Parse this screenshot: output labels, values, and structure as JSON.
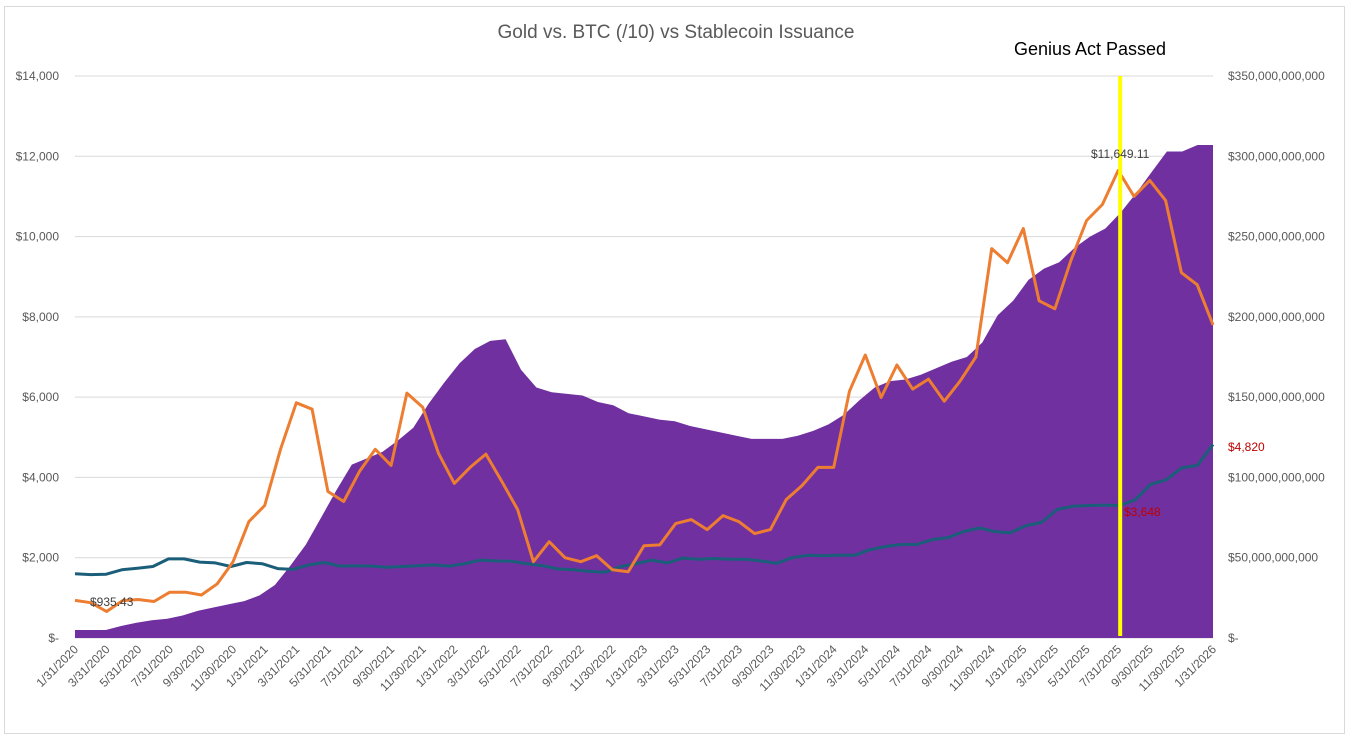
{
  "chart_data": {
    "type": "line",
    "title": "Gold vs. BTC (/10) vs Stablecoin Issuance",
    "xlabel": "",
    "ylabel": "",
    "y_left_ticks": [
      "$-",
      "$2,000",
      "$4,000",
      "$6,000",
      "$8,000",
      "$10,000",
      "$12,000",
      "$14,000"
    ],
    "y_left_lim": [
      0,
      14000
    ],
    "y_right_ticks": [
      "$-",
      "$50,000,000,000",
      "$100,000,000,000",
      "$150,000,000,000",
      "$200,000,000,000",
      "$250,000,000,000",
      "$300,000,000,000",
      "$350,000,000,000"
    ],
    "y_right_lim": [
      0,
      350000000000
    ],
    "x_tick_labels": [
      "1/31/2020",
      "3/31/2020",
      "5/31/2020",
      "7/31/2020",
      "9/30/2020",
      "11/30/2020",
      "1/31/2021",
      "3/31/2021",
      "5/31/2021",
      "7/31/2021",
      "9/30/2021",
      "11/30/2021",
      "1/31/2022",
      "3/31/2022",
      "5/31/2022",
      "7/31/2022",
      "9/30/2022",
      "11/30/2022",
      "1/31/2023",
      "3/31/2023",
      "5/31/2023",
      "7/31/2023",
      "9/30/2023",
      "11/30/2023",
      "1/31/2024",
      "3/31/2024",
      "5/31/2024",
      "7/31/2024",
      "9/30/2024",
      "11/30/2024",
      "1/31/2025",
      "3/31/2025",
      "5/31/2025",
      "7/31/2025",
      "9/30/2025",
      "11/30/2025",
      "1/31/2026"
    ],
    "grid": true,
    "legend": "none",
    "series": [
      {
        "color": "#7030A0",
        "chart_type": "area",
        "axis": "right",
        "values": [
          5000000000,
          5000000000,
          5000000000,
          7500000000,
          9500000000,
          11000000000,
          12000000000,
          14000000000,
          17000000000,
          19000000000,
          21000000000,
          23000000000,
          26500000000,
          33000000000,
          45000000000,
          58000000000,
          75000000000,
          92000000000,
          108000000000,
          112000000000,
          116000000000,
          123000000000,
          131000000000,
          146000000000,
          159000000000,
          171000000000,
          180000000000,
          185000000000,
          186000000000,
          167000000000,
          156000000000,
          153000000000,
          152000000000,
          151000000000,
          147000000000,
          145000000000,
          140000000000,
          138000000000,
          136000000000,
          135000000000,
          132000000000,
          130000000000,
          128000000000,
          126000000000,
          124000000000,
          124000000000,
          124000000000,
          126000000000,
          129000000000,
          133000000000,
          139000000000,
          148000000000,
          156000000000,
          160000000000,
          161000000000,
          164000000000,
          168000000000,
          172000000000,
          175000000000,
          184000000000,
          201000000000,
          210000000000,
          223000000000,
          230000000000,
          234000000000,
          243000000000,
          250000000000,
          255000000000,
          265000000000,
          277000000000,
          290000000000,
          303000000000,
          303000000000,
          307000000000,
          307000000000
        ]
      },
      {
        "color": "#ED7D31",
        "axis": "left",
        "values": [
          935.43,
          880,
          660,
          930,
          960,
          910,
          1140,
          1140,
          1070,
          1350,
          1900,
          2900,
          3300,
          4700,
          5860,
          5700,
          3650,
          3400,
          4150,
          4700,
          4300,
          6100,
          5750,
          4600,
          3850,
          4250,
          4580,
          3900,
          3200,
          1900,
          2400,
          2000,
          1900,
          2050,
          1700,
          1650,
          2300,
          2320,
          2850,
          2950,
          2700,
          3050,
          2900,
          2600,
          2700,
          3450,
          3800,
          4250,
          4250,
          6150,
          7050,
          5990,
          6800,
          6200,
          6450,
          5900,
          6400,
          7000,
          9700,
          9350,
          10200,
          8400,
          8200,
          9400,
          10400,
          10800,
          11649.11,
          11000,
          11400,
          10900,
          9100,
          8800,
          7800
        ]
      },
      {
        "color": "#1B5E7A",
        "axis": "left",
        "values": [
          1600,
          1580,
          1590,
          1700,
          1740,
          1780,
          1970,
          1970,
          1890,
          1870,
          1780,
          1880,
          1850,
          1730,
          1710,
          1820,
          1880,
          1790,
          1800,
          1790,
          1760,
          1780,
          1800,
          1820,
          1790,
          1850,
          1940,
          1920,
          1910,
          1850,
          1800,
          1720,
          1700,
          1660,
          1640,
          1780,
          1850,
          1940,
          1870,
          1990,
          1960,
          1980,
          1960,
          1960,
          1920,
          1860,
          2000,
          2060,
          2050,
          2060,
          2060,
          2200,
          2280,
          2330,
          2330,
          2450,
          2500,
          2650,
          2740,
          2650,
          2620,
          2800,
          2880,
          3200,
          3280,
          3300,
          3310,
          3300,
          3440,
          3830,
          3940,
          4240,
          4300,
          4820
        ]
      }
    ],
    "annotations": [
      {
        "text": "$935.43",
        "color": "#404040"
      },
      {
        "text": "$11,649.11",
        "color": "#404040"
      },
      {
        "text": "$4,820",
        "color": "#C00000"
      },
      {
        "text": "$3,648",
        "color": "#C00000"
      },
      {
        "text": "Genius Act Passed",
        "color": "#000000"
      }
    ],
    "vertical_marker": {
      "label": "Genius Act Passed",
      "color": "#FFFF00",
      "date": "7/31/2025"
    }
  }
}
